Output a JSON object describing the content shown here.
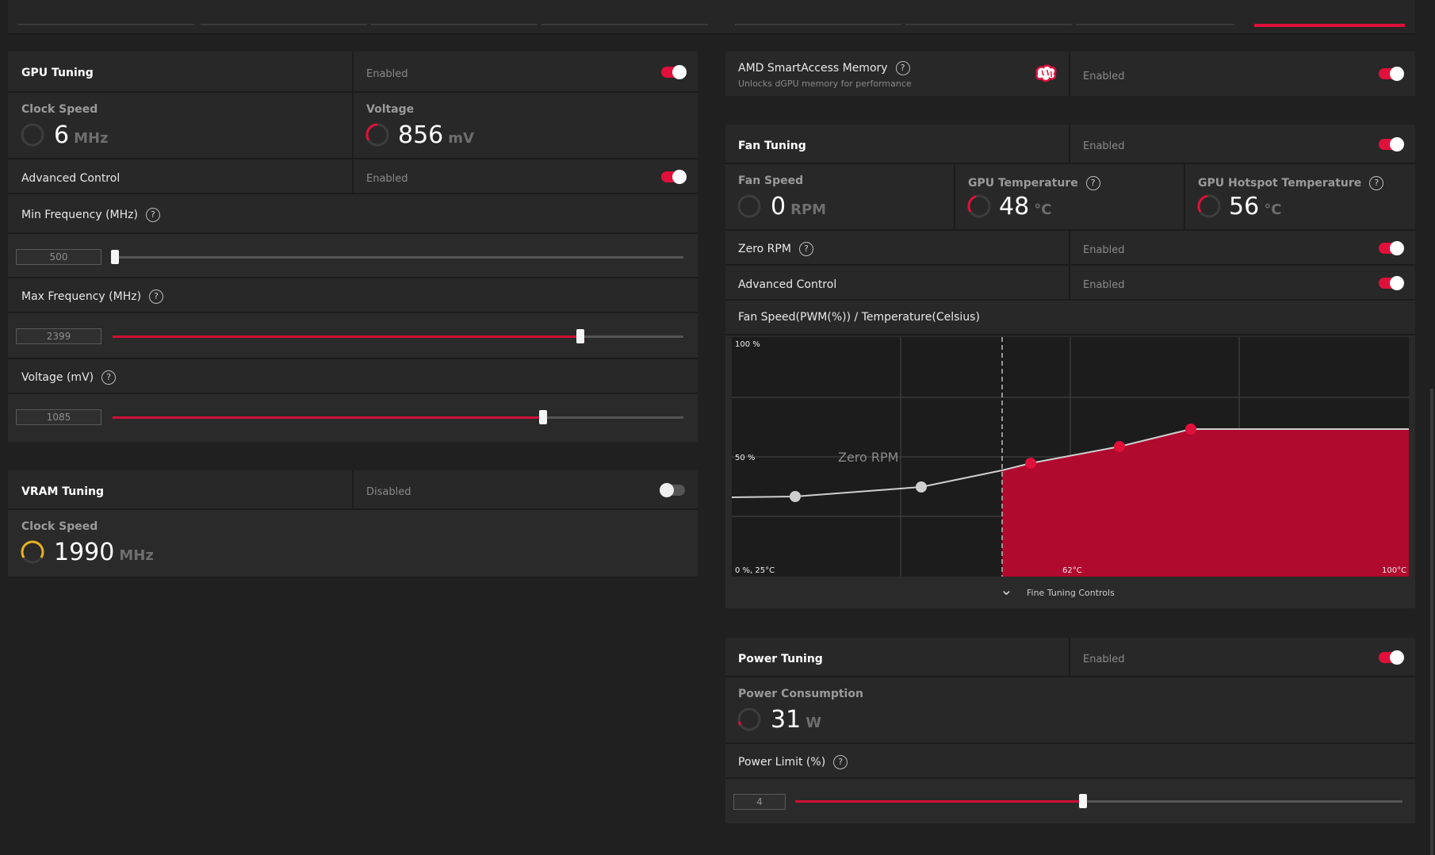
{
  "left": {
    "gpu_tuning": {
      "title": "GPU Tuning",
      "state": "Enabled"
    },
    "clock_speed": {
      "label": "Clock Speed",
      "value": "6",
      "unit": "MHz"
    },
    "voltage": {
      "label": "Voltage",
      "value": "856",
      "unit": "mV"
    },
    "advanced_control": {
      "label": "Advanced Control",
      "state": "Enabled"
    },
    "min_freq": {
      "label": "Min Frequency (MHz)",
      "value": "500",
      "fraction": 0.0
    },
    "max_freq": {
      "label": "Max Frequency (MHz)",
      "value": "2399",
      "fraction": 0.82
    },
    "voltage_slider": {
      "label": "Voltage (mV)",
      "value": "1085",
      "fraction": 0.755
    },
    "vram_tuning": {
      "title": "VRAM Tuning",
      "state": "Disabled"
    },
    "vram_clock": {
      "label": "Clock Speed",
      "value": "1990",
      "unit": "MHz"
    }
  },
  "right": {
    "sam": {
      "title": "AMD SmartAccess Memory",
      "desc": "Unlocks dGPU memory for performance",
      "state": "Enabled"
    },
    "fan_tuning": {
      "title": "Fan Tuning",
      "state": "Enabled"
    },
    "fan_speed": {
      "label": "Fan Speed",
      "value": "0",
      "unit": "RPM"
    },
    "gpu_temp": {
      "label": "GPU Temperature",
      "value": "48",
      "unit": "°C"
    },
    "hotspot_temp": {
      "label": "GPU Hotspot Temperature",
      "value": "56",
      "unit": "°C"
    },
    "zero_rpm": {
      "label": "Zero RPM",
      "state": "Enabled"
    },
    "fan_advanced": {
      "label": "Advanced Control",
      "state": "Enabled"
    },
    "fan_curve": {
      "title": "Fan Speed(PWM(%)) / Temperature(Celsius)",
      "y_max_label": "100 %",
      "y_mid_label": "50 %",
      "origin_label": "0 %, 25°C",
      "x_mid_label": "62°C",
      "x_max_label": "100°C",
      "zero_rpm_label": "Zero RPM",
      "fine_tuning": "Fine Tuning Controls"
    },
    "power_tuning": {
      "title": "Power Tuning",
      "state": "Enabled"
    },
    "power_consumption": {
      "label": "Power Consumption",
      "value": "31",
      "unit": "W"
    },
    "power_limit": {
      "label": "Power Limit (%)",
      "value": "4",
      "fraction": 0.5
    }
  },
  "help_glyph": "?",
  "chevron_glyph": "⌄",
  "colors": {
    "accent": "#e0103a",
    "curve_fill": "#b00a2e",
    "gauge_yellow": "#e8b21e"
  }
}
